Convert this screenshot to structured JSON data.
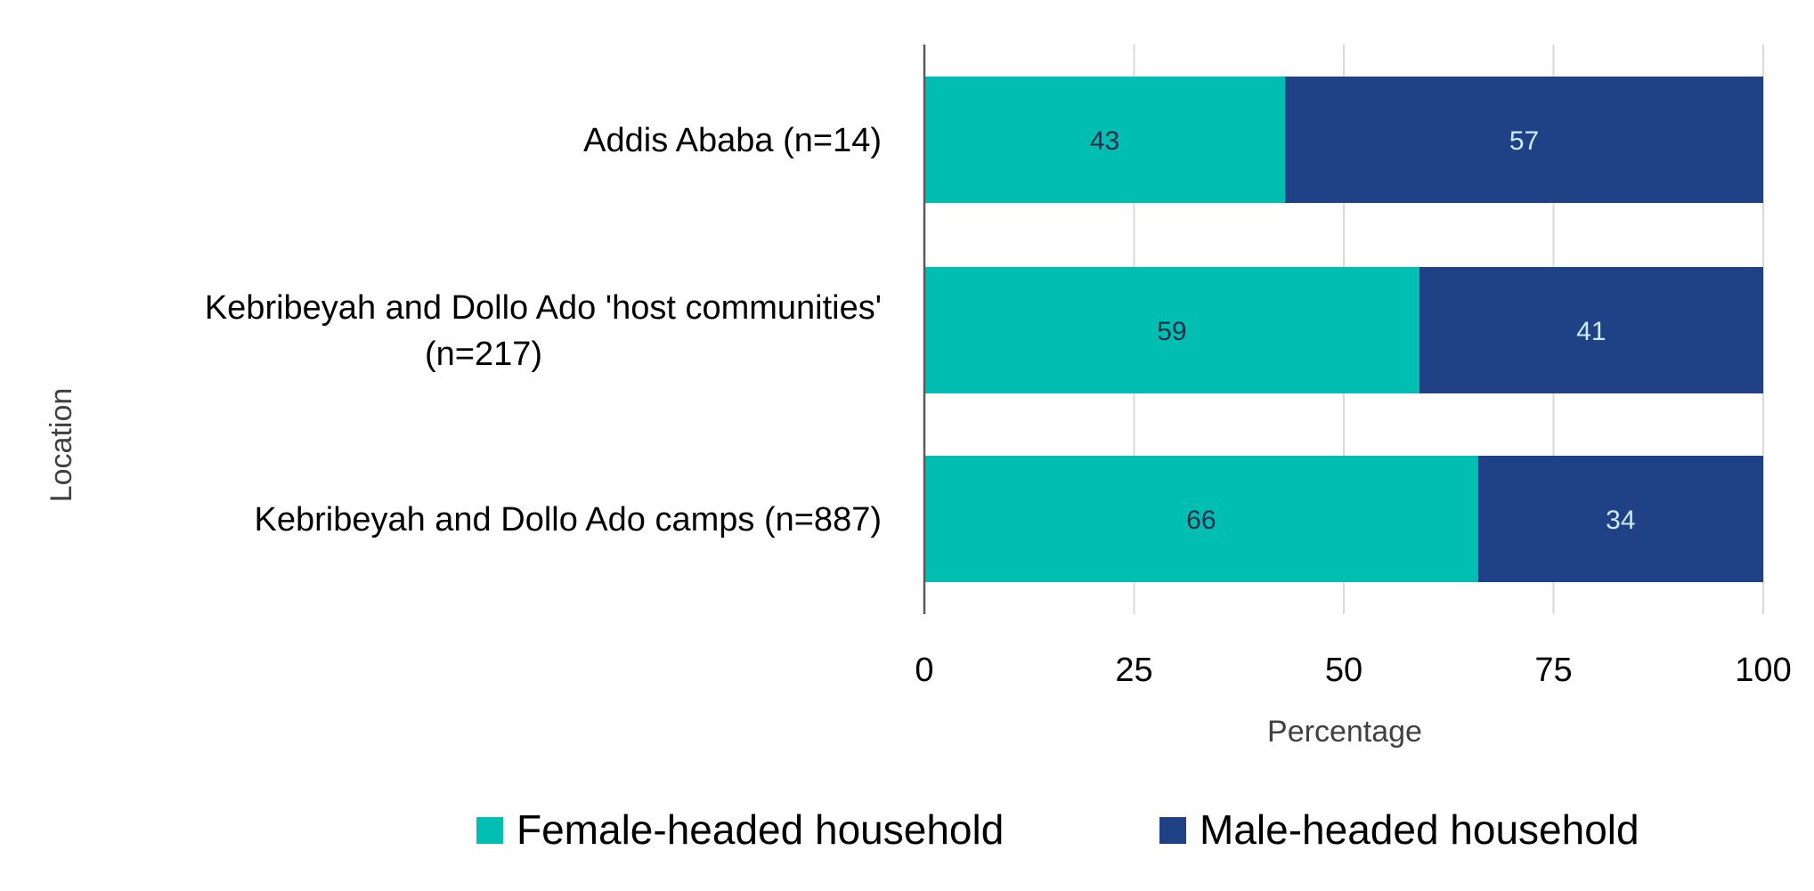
{
  "chart_data": {
    "type": "bar",
    "orientation": "horizontal",
    "stacked": true,
    "categories": [
      [
        "Addis Ababa (n=14)"
      ],
      [
        "Kebribeyah and Dollo Ado 'host communities'",
        "(n=217)"
      ],
      [
        "Kebribeyah and Dollo Ado camps (n=887)"
      ]
    ],
    "series": [
      {
        "name": "Female-headed household",
        "color": "#00BFB2",
        "label_color": "#1F2D4D",
        "values": [
          43,
          59,
          66
        ]
      },
      {
        "name": "Male-headed household",
        "color": "#1F4287",
        "label_color": "#CDEBFA",
        "values": [
          57,
          41,
          34
        ]
      }
    ],
    "xlabel": "Percentage",
    "ylabel": "Location",
    "xlim": [
      0,
      100
    ],
    "xticks": [
      "0",
      "25",
      "50",
      "75",
      "100"
    ],
    "grid": true,
    "legend": "bottom"
  }
}
